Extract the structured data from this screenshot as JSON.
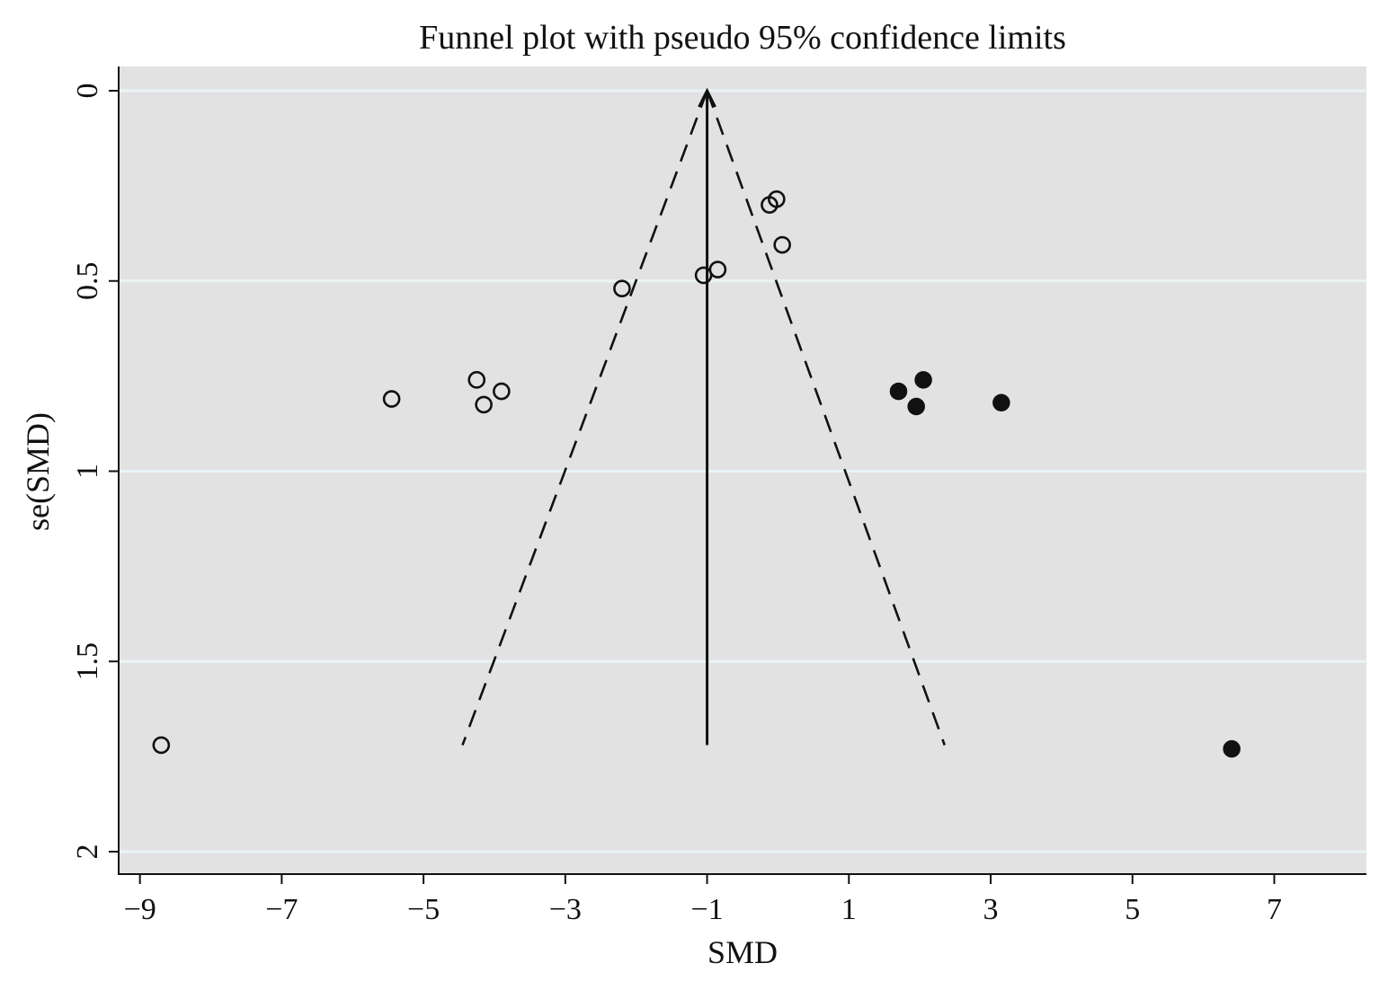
{
  "chart_data": {
    "type": "scatter",
    "title": "Funnel plot with pseudo 95% confidence limits",
    "xlabel": "SMD",
    "ylabel": "se(SMD)",
    "xlim": [
      -9.3,
      8.3
    ],
    "ylim": [
      0,
      2.06
    ],
    "y_reversed": true,
    "x_ticks": [
      -9,
      -7,
      -5,
      -3,
      -1,
      1,
      3,
      5,
      7
    ],
    "x_tick_labels": [
      "−9",
      "−7",
      "−5",
      "−3",
      "−1",
      "1",
      "3",
      "5",
      "7"
    ],
    "y_ticks": [
      0,
      0.5,
      1,
      1.5,
      2
    ],
    "y_tick_labels": [
      "0",
      "0.5",
      "1",
      "1.5",
      "2"
    ],
    "grid": true,
    "pooled_effect": -1.0,
    "funnel": {
      "apex": [
        -1.0,
        0.0
      ],
      "left_base": [
        -4.45,
        1.72
      ],
      "right_base": [
        2.35,
        1.72
      ],
      "style": "dashed"
    },
    "effect_line": {
      "x": -1.0,
      "y_from": 0.0,
      "y_to": 1.72,
      "style": "solid-arrow"
    },
    "series": [
      {
        "marker": "hollow-circle",
        "points": [
          {
            "x": -0.12,
            "y": 0.3
          },
          {
            "x": -0.02,
            "y": 0.285
          },
          {
            "x": 0.06,
            "y": 0.405
          },
          {
            "x": -1.05,
            "y": 0.485
          },
          {
            "x": -0.85,
            "y": 0.47
          },
          {
            "x": -2.2,
            "y": 0.52
          },
          {
            "x": -4.25,
            "y": 0.76
          },
          {
            "x": -4.15,
            "y": 0.825
          },
          {
            "x": -3.9,
            "y": 0.79
          },
          {
            "x": -5.45,
            "y": 0.81
          },
          {
            "x": -8.7,
            "y": 1.72
          }
        ]
      },
      {
        "marker": "filled-circle",
        "points": [
          {
            "x": 1.7,
            "y": 0.79
          },
          {
            "x": 2.05,
            "y": 0.76
          },
          {
            "x": 1.95,
            "y": 0.83
          },
          {
            "x": 3.15,
            "y": 0.82
          },
          {
            "x": 6.4,
            "y": 1.73
          }
        ]
      }
    ],
    "colors": {
      "plot_background": "#e2e2e2",
      "gridline": "#eaf4f6",
      "ink": "#111111"
    }
  }
}
